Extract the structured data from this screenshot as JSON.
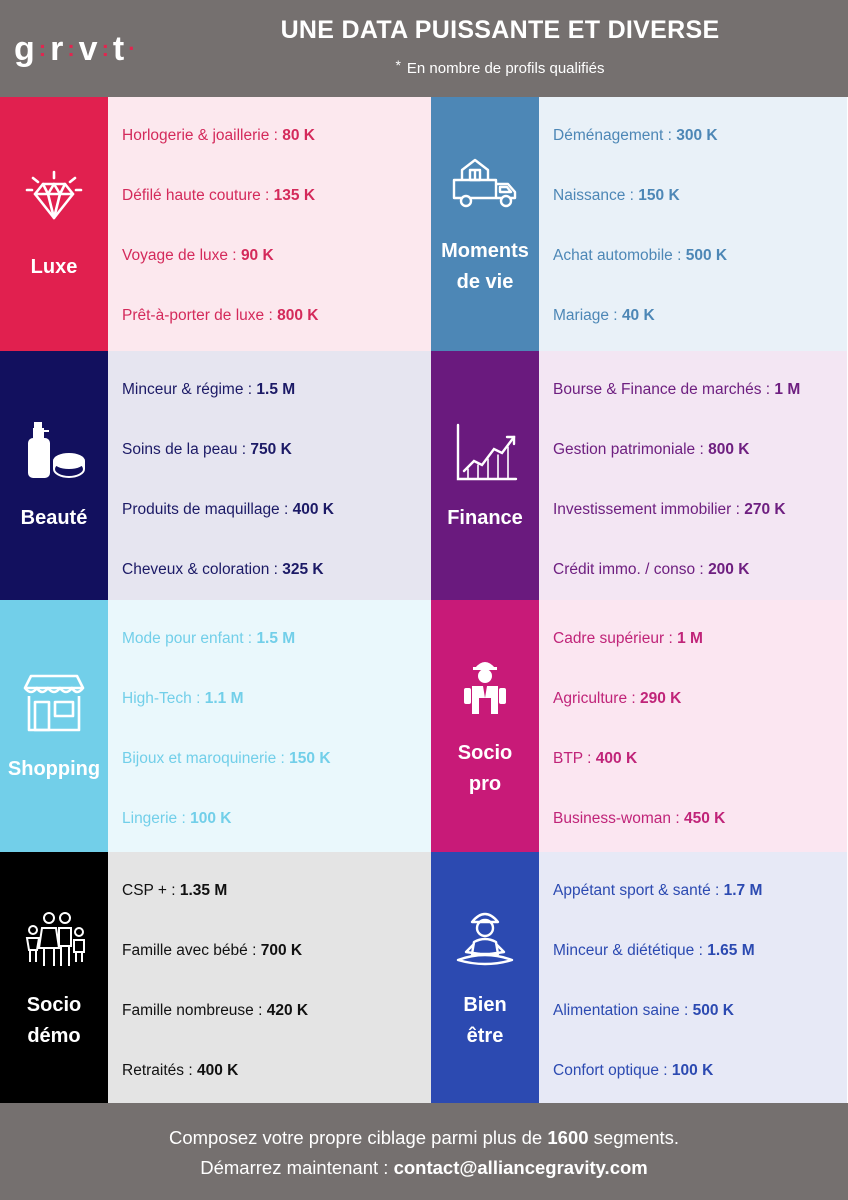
{
  "header": {
    "logo_letters": [
      "g",
      "r",
      "v",
      "t"
    ],
    "title": "UNE DATA PUISSANTE ET DIVERSE",
    "subtitle_star": "*",
    "subtitle": "En nombre de profils qualifiés"
  },
  "categories": [
    {
      "label": "Luxe",
      "icon": "diamond-icon",
      "color": "#e1204f",
      "bg": "#fce8ee",
      "text": "#d42a5b",
      "items": [
        {
          "name": "Horlogerie & joaillerie :",
          "value": "80 K"
        },
        {
          "name": "Défilé haute couture :",
          "value": "135 K"
        },
        {
          "name": "Voyage de luxe :",
          "value": "90 K"
        },
        {
          "name": "Prêt-à-porter de luxe :",
          "value": "800 K"
        }
      ]
    },
    {
      "label": "Moments\nde vie",
      "icon": "moving-truck-icon",
      "color": "#4d87b6",
      "bg": "#e9f1f8",
      "text": "#4d87b6",
      "items": [
        {
          "name": "Déménagement :",
          "value": "300 K"
        },
        {
          "name": "Naissance :",
          "value": "150 K"
        },
        {
          "name": "Achat automobile :",
          "value": "500 K"
        },
        {
          "name": "Mariage :",
          "value": "40 K"
        }
      ]
    },
    {
      "label": "Beauté",
      "icon": "cosmetics-icon",
      "color": "#12105e",
      "bg": "#e6e5f0",
      "text": "#1c1a66",
      "items": [
        {
          "name": "Minceur & régime :",
          "value": "1.5 M"
        },
        {
          "name": "Soins de la peau :",
          "value": "750 K"
        },
        {
          "name": "Produits de maquillage :",
          "value": "400 K"
        },
        {
          "name": "Cheveux & coloration :",
          "value": "325 K"
        }
      ]
    },
    {
      "label": "Finance",
      "icon": "growth-chart-icon",
      "color": "#6a1a7e",
      "bg": "#f3e6f3",
      "text": "#6e1f80",
      "items": [
        {
          "name": "Bourse & Finance de marchés :",
          "value": "1 M"
        },
        {
          "name": "Gestion patrimoniale :",
          "value": "800 K"
        },
        {
          "name": "Investissement immobilier :",
          "value": "270 K"
        },
        {
          "name": "Crédit immo. / conso :",
          "value": "200 K"
        }
      ]
    },
    {
      "label": "Shopping",
      "icon": "storefront-icon",
      "color": "#72cfe9",
      "bg": "#eaf8fc",
      "text": "#72cfe9",
      "items": [
        {
          "name": "Mode pour enfant :",
          "value": "1.5 M"
        },
        {
          "name": "High-Tech :",
          "value": "1.1 M"
        },
        {
          "name": "Bijoux et maroquinerie :",
          "value": "150 K"
        },
        {
          "name": "Lingerie :",
          "value": "100 K"
        }
      ]
    },
    {
      "label": "Socio\npro",
      "icon": "worker-icon",
      "color": "#c81a78",
      "bg": "#fbe6f1",
      "text": "#c02479",
      "items": [
        {
          "name": "Cadre supérieur :",
          "value": "1 M"
        },
        {
          "name": "Agriculture :",
          "value": "290 K"
        },
        {
          "name": "BTP :",
          "value": "400 K"
        },
        {
          "name": "Business-woman :",
          "value": "450 K"
        }
      ]
    },
    {
      "label": "Socio\ndémo",
      "icon": "family-icon",
      "color": "#000000",
      "bg": "#e4e4e4",
      "text": "#111111",
      "items": [
        {
          "name": "CSP + :",
          "value": "1.35 M"
        },
        {
          "name": "Famille avec bébé :",
          "value": "700 K"
        },
        {
          "name": "Famille nombreuse :",
          "value": "420 K"
        },
        {
          "name": "Retraités :",
          "value": "400 K"
        }
      ]
    },
    {
      "label": "Bien\nêtre",
      "icon": "meditation-icon",
      "color": "#2c4ab1",
      "bg": "#e7e9f6",
      "text": "#2c4ab1",
      "items": [
        {
          "name": "Appétant sport & santé :",
          "value": "1.7 M"
        },
        {
          "name": "Minceur & diététique :",
          "value": "1.65 M"
        },
        {
          "name": "Alimentation saine :",
          "value": "500 K"
        },
        {
          "name": "Confort optique :",
          "value": "100 K"
        }
      ]
    }
  ],
  "footer": {
    "line1_before": "Composez votre propre ciblage parmi plus de",
    "line1_number": "1600",
    "line1_after": "segments.",
    "line2_before": "Démarrez maintenant :",
    "line2_email": "contact@alliancegravity.com"
  }
}
